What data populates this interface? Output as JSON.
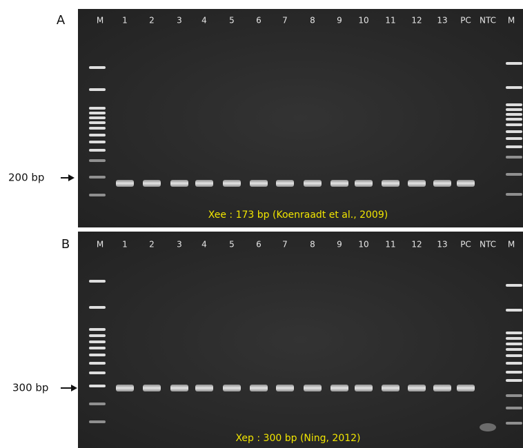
{
  "panels": [
    {
      "label": "A",
      "lanes": [
        "M",
        "1",
        "2",
        "3",
        "4",
        "5",
        "6",
        "7",
        "8",
        "9",
        "10",
        "11",
        "12",
        "13",
        "PC",
        "NTC",
        "M"
      ],
      "marker": "200 bp",
      "caption": "Xee : 173 bp (Koenraadt et al., 2009)"
    },
    {
      "label": "B",
      "lanes": [
        "M",
        "1",
        "2",
        "3",
        "4",
        "5",
        "6",
        "7",
        "8",
        "9",
        "10",
        "11",
        "12",
        "13",
        "PC",
        "NTC",
        "M"
      ],
      "marker": "300 bp",
      "caption": "Xep : 300 bp (Ning, 2012)"
    }
  ]
}
